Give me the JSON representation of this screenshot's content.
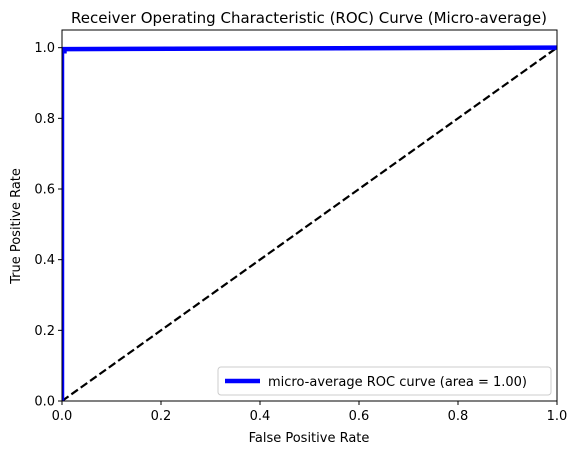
{
  "chart_data": {
    "type": "line",
    "title": "Receiver Operating Characteristic (ROC) Curve (Micro-average)",
    "xlabel": "False Positive Rate",
    "ylabel": "True Positive Rate",
    "xlim": [
      0.0,
      1.0
    ],
    "ylim": [
      0.0,
      1.05
    ],
    "xticks": [
      "0.0",
      "0.2",
      "0.4",
      "0.6",
      "0.8",
      "1.0"
    ],
    "yticks": [
      "0.0",
      "0.2",
      "0.4",
      "0.6",
      "0.8",
      "1.0"
    ],
    "grid": false,
    "legend_position": "lower right",
    "series": [
      {
        "name": "micro-average ROC curve (area = 1.00)",
        "color": "#0000ff",
        "style": "solid",
        "x": [
          0.0,
          0.0,
          0.005,
          0.005,
          1.0
        ],
        "y": [
          0.0,
          0.99,
          0.99,
          0.996,
          1.0
        ]
      },
      {
        "color": "#000000",
        "style": "dashed",
        "x": [
          0.0,
          1.0
        ],
        "y": [
          0.0,
          1.0
        ]
      }
    ]
  }
}
